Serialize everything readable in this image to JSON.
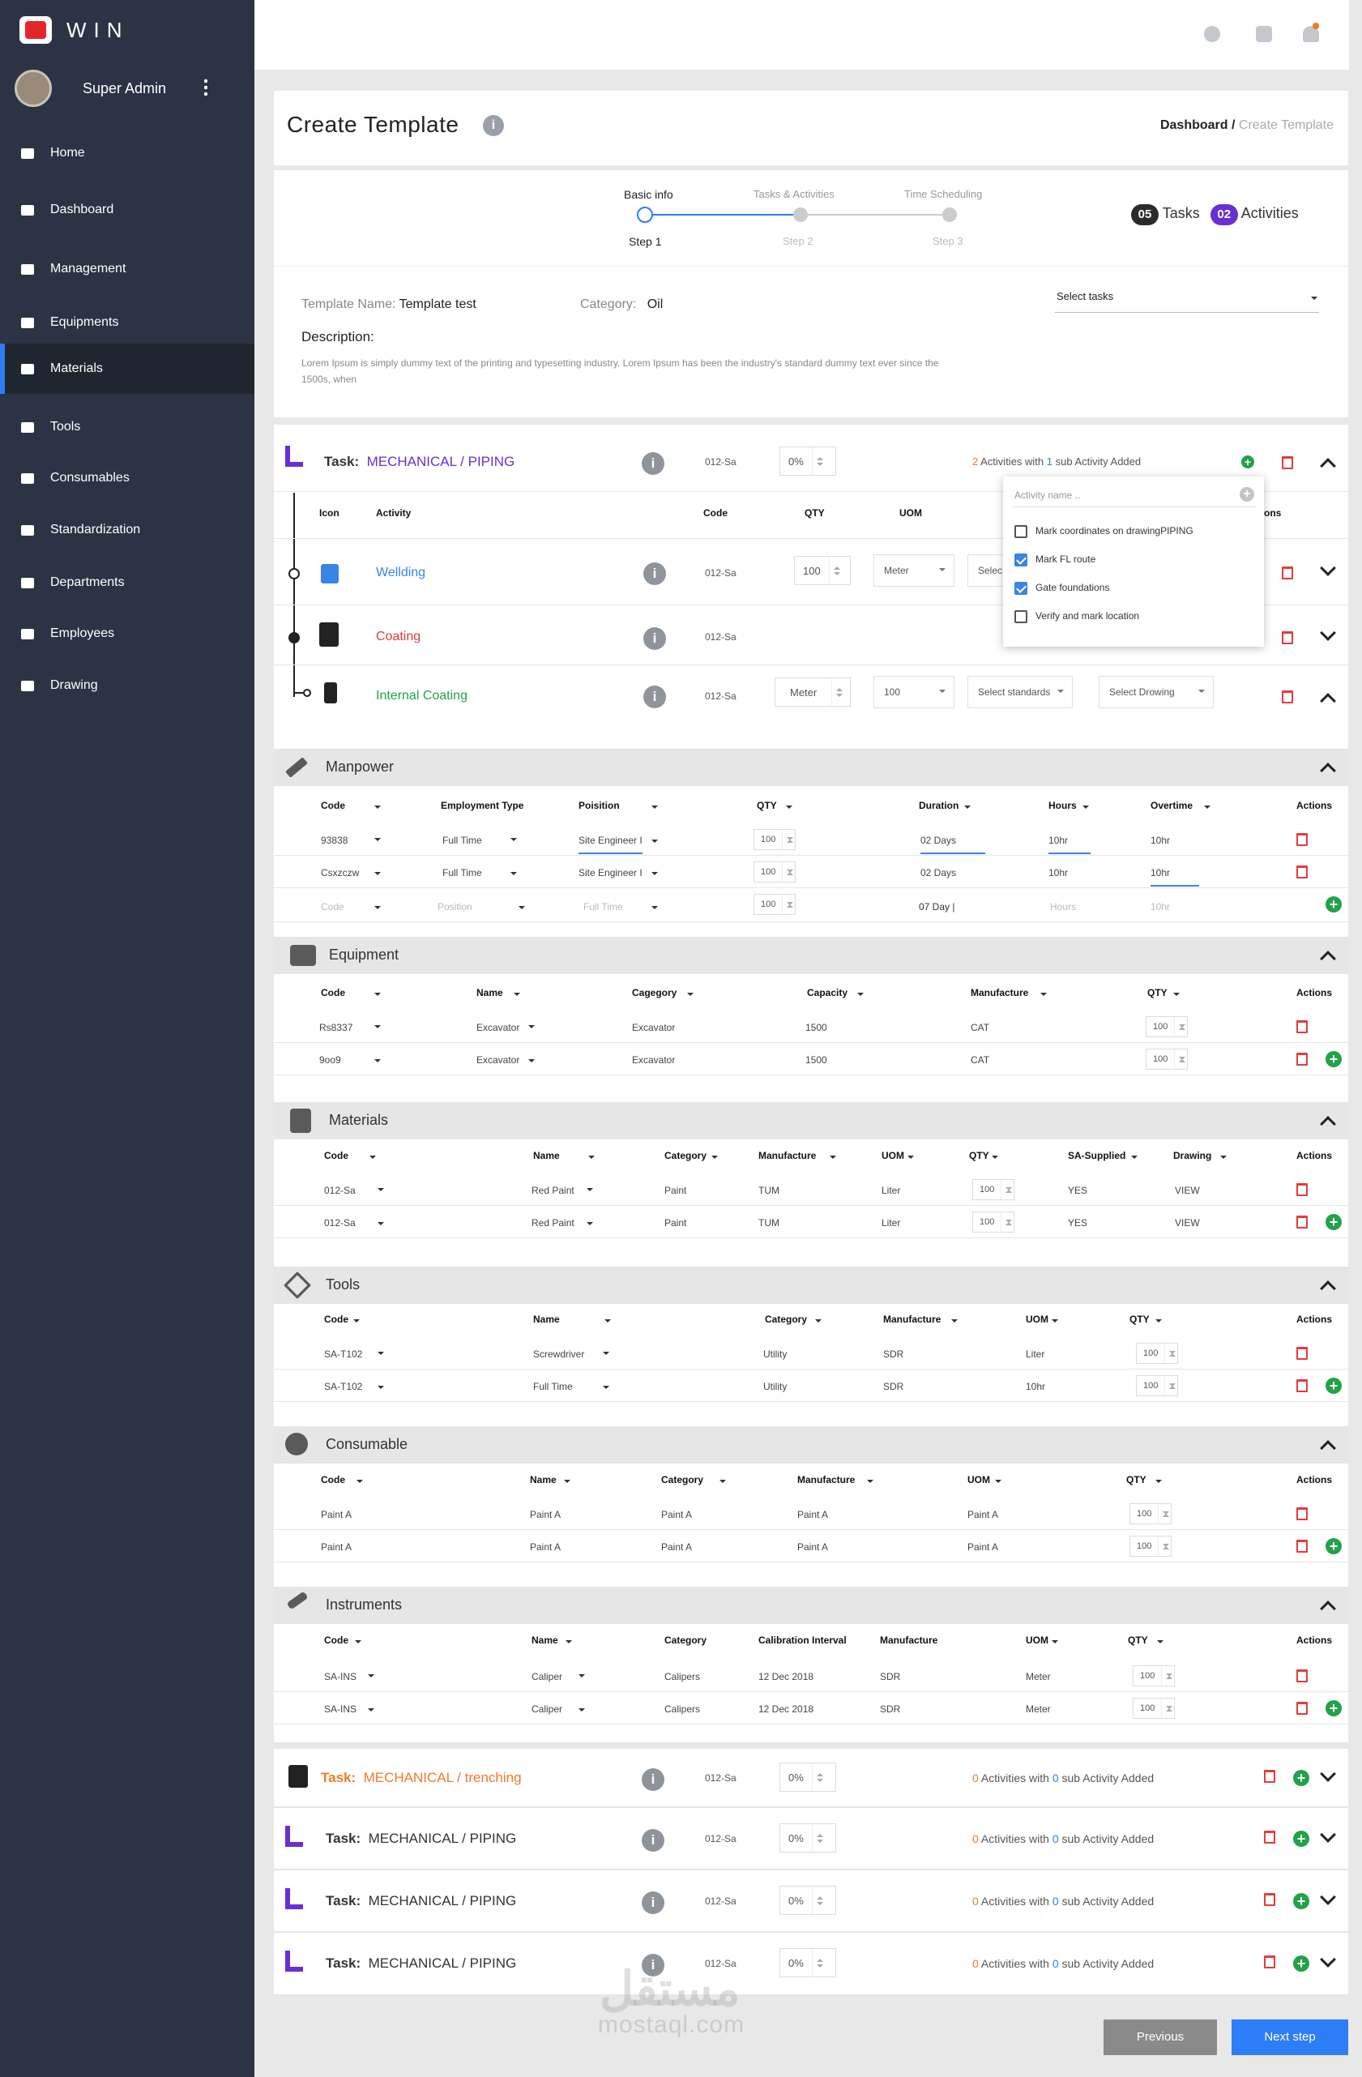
{
  "app": {
    "name": "WIN",
    "user": "Super Admin"
  },
  "nav": [
    {
      "label": "Home",
      "icon": "home-icon"
    },
    {
      "label": "Dashboard",
      "icon": "chart-icon"
    },
    {
      "label": "Management",
      "icon": "management-icon"
    },
    {
      "label": "Equipments",
      "icon": "equipments-icon"
    },
    {
      "label": "Materials",
      "icon": "materials-icon",
      "active": true
    },
    {
      "label": "Tools",
      "icon": "tools-icon"
    },
    {
      "label": "Consumables",
      "icon": "consumables-icon"
    },
    {
      "label": "Standardization",
      "icon": "grid-icon"
    },
    {
      "label": "Departments",
      "icon": "departments-icon"
    },
    {
      "label": "Employees",
      "icon": "employees-icon"
    },
    {
      "label": "Drawing",
      "icon": "drawing-icon"
    }
  ],
  "header": {
    "title": "Create Template",
    "breadcrumb_root": "Dashboard",
    "breadcrumb_sep": " / ",
    "breadcrumb_current": "Create Template"
  },
  "steps": [
    {
      "label": "Basic info",
      "step": "Step 1"
    },
    {
      "label": "Tasks & Activities",
      "step": "Step 2"
    },
    {
      "label": "Time Scheduling",
      "step": "Step 3"
    }
  ],
  "counts": {
    "tasks_num": "05",
    "tasks_label": "Tasks",
    "activities_num": "02",
    "activities_label": "Activities"
  },
  "template": {
    "name_label": "Template Name:",
    "name": "Template test",
    "category_label": "Category:",
    "category": "Oil",
    "select_tasks": "Select tasks",
    "description_label": "Description:",
    "description": "Lorem Ipsum is simply dummy text of the printing and typesetting industry. Lorem Ipsum has been the industry's standard dummy text ever since the 1500s, when"
  },
  "task1": {
    "prefix": "Task:",
    "name": "MECHANICAL / PIPING",
    "code": "012-Sa",
    "progress": "0%",
    "act_count": "2",
    "act_mid": " Activities with ",
    "sub_count": "1",
    "act_end": " sub Activity Added",
    "col_headers": [
      "Icon",
      "Activity",
      "Code",
      "QTY",
      "UOM",
      "ons"
    ],
    "activities": [
      {
        "name": "Wellding",
        "code": "012-Sa",
        "qty": "100",
        "uom": "Meter",
        "standard": "Selec",
        "color": "#3a84e6"
      },
      {
        "name": "Coating",
        "code": "012-Sa",
        "color": "#e23c3c"
      },
      {
        "name": "Internal Coating",
        "code": "012-Sa",
        "qty": "Meter",
        "uom": "100",
        "standard": "Select standards",
        "drawing": "Select Drowing",
        "color": "#23a249"
      }
    ],
    "dropdown": {
      "placeholder": "Activity name ..",
      "options": [
        {
          "label": "Mark coordinates on drawingPIPING",
          "checked": false
        },
        {
          "label": "Mark FL route",
          "checked": true
        },
        {
          "label": "Gate foundations",
          "checked": true
        },
        {
          "label": "Verify and mark location",
          "checked": false
        }
      ]
    }
  },
  "manpower": {
    "title": "Manpower",
    "headers": [
      "Code",
      "Employment Type",
      "Poisition",
      "QTY",
      "Duration",
      "Hours",
      "Overtime",
      "Actions"
    ],
    "rows": [
      {
        "code": "93838",
        "type": "Full Time",
        "position": "Site Engineer I",
        "qty": "100",
        "duration": "02 Days",
        "hours": "10hr",
        "overtime": "10hr"
      },
      {
        "code": "Csxzczw",
        "type": "Full Time",
        "position": "Site Engineer I",
        "qty": "100",
        "duration": "02 Days",
        "hours": "10hr",
        "overtime": "10hr"
      }
    ],
    "new_row": {
      "code": "Code",
      "type": "Position",
      "position": "Full Time",
      "qty": "100",
      "duration": "07 Day |",
      "hours": "Hours",
      "overtime": "10hr"
    }
  },
  "equipment": {
    "title": "Equipment",
    "headers": [
      "Code",
      "Name",
      "Cagegory",
      "Capacity",
      "Manufacture",
      "QTY",
      "Actions"
    ],
    "rows": [
      {
        "code": "Rs8337",
        "name": "Excavator",
        "category": "Excavator",
        "capacity": "1500",
        "manufacture": "CAT",
        "qty": "100"
      },
      {
        "code": "9oo9",
        "name": "Excavator",
        "category": "Excavator",
        "capacity": "1500",
        "manufacture": "CAT",
        "qty": "100"
      }
    ]
  },
  "materials": {
    "title": "Materials",
    "headers": [
      "Code",
      "Name",
      "Category",
      "Manufacture",
      "UOM",
      "QTY",
      "SA-Supplied",
      "Drawing",
      "Actions"
    ],
    "rows": [
      {
        "code": "012-Sa",
        "name": "Red Paint",
        "category": "Paint",
        "manufacture": "TUM",
        "uom": "Liter",
        "qty": "100",
        "supplied": "YES",
        "drawing": "VIEW"
      },
      {
        "code": "012-Sa",
        "name": "Red Paint",
        "category": "Paint",
        "manufacture": "TUM",
        "uom": "Liter",
        "qty": "100",
        "supplied": "YES",
        "drawing": "VIEW"
      }
    ]
  },
  "tools": {
    "title": "Tools",
    "headers": [
      "Code",
      "Name",
      "Category",
      "Manufacture",
      "UOM",
      "QTY",
      "Actions"
    ],
    "rows": [
      {
        "code": "SA-T102",
        "name": "Screwdriver",
        "category": "Utility",
        "manufacture": "SDR",
        "uom": "Liter",
        "qty": "100"
      },
      {
        "code": "SA-T102",
        "name": "Full Time",
        "category": "Utility",
        "manufacture": "SDR",
        "uom": "10hr",
        "qty": "100"
      }
    ]
  },
  "consumable": {
    "title": "Consumable",
    "headers": [
      "Code",
      "Name",
      "Category",
      "Manufacture",
      "UOM",
      "QTY",
      "Actions"
    ],
    "rows": [
      {
        "code": "Paint A",
        "name": "Paint A",
        "category": "Paint A",
        "manufacture": "Paint A",
        "uom": "Paint A",
        "qty": "100"
      },
      {
        "code": "Paint A",
        "name": "Paint A",
        "category": "Paint A",
        "manufacture": "Paint A",
        "uom": "Paint A",
        "qty": "100"
      }
    ]
  },
  "instruments": {
    "title": "Instruments",
    "headers": [
      "Code",
      "Name",
      "Category",
      "Calibration Interval",
      "Manufacture",
      "UOM",
      "QTY",
      "Actions"
    ],
    "rows": [
      {
        "code": "SA-INS",
        "name": "Caliper",
        "category": "Calipers",
        "interval": "12 Dec 2018",
        "manufacture": "SDR",
        "uom": "Meter",
        "qty": "100"
      },
      {
        "code": "SA-INS",
        "name": "Caliper",
        "category": "Calipers",
        "interval": "12 Dec 2018",
        "manufacture": "SDR",
        "uom": "Meter",
        "qty": "100"
      }
    ]
  },
  "other_tasks": [
    {
      "prefix": "Task:",
      "name": "MECHANICAL / trenching",
      "code": "012-Sa",
      "progress": "0%",
      "act_count": "0",
      "act_mid": " Activities with ",
      "sub_count": "0",
      "act_end": " sub Activity Added"
    },
    {
      "prefix": "Task:",
      "name": "MECHANICAL / PIPING",
      "code": "012-Sa",
      "progress": "0%",
      "act_count": "0",
      "act_mid": " Activities with ",
      "sub_count": "0",
      "act_end": " sub Activity Added"
    },
    {
      "prefix": "Task:",
      "name": "MECHANICAL / PIPING",
      "code": "012-Sa",
      "progress": "0%",
      "act_count": "0",
      "act_mid": " Activities with ",
      "sub_count": "0",
      "act_end": " sub Activity Added"
    },
    {
      "prefix": "Task:",
      "name": "MECHANICAL / PIPING",
      "code": "012-Sa",
      "progress": "0%",
      "act_count": "0",
      "act_mid": " Activities with ",
      "sub_count": "0",
      "act_end": " sub Activity Added"
    }
  ],
  "footer": {
    "previous": "Previous",
    "next": "Next step"
  },
  "watermark": {
    "arabic": "مستقل",
    "latin": "mostaql.com"
  },
  "colors": {
    "sidebar": "#2b3344",
    "accent": "#2d7df6",
    "purple": "#6a2fd0",
    "orange": "#f07a2a",
    "danger": "#e23c3c",
    "success": "#23a249"
  }
}
